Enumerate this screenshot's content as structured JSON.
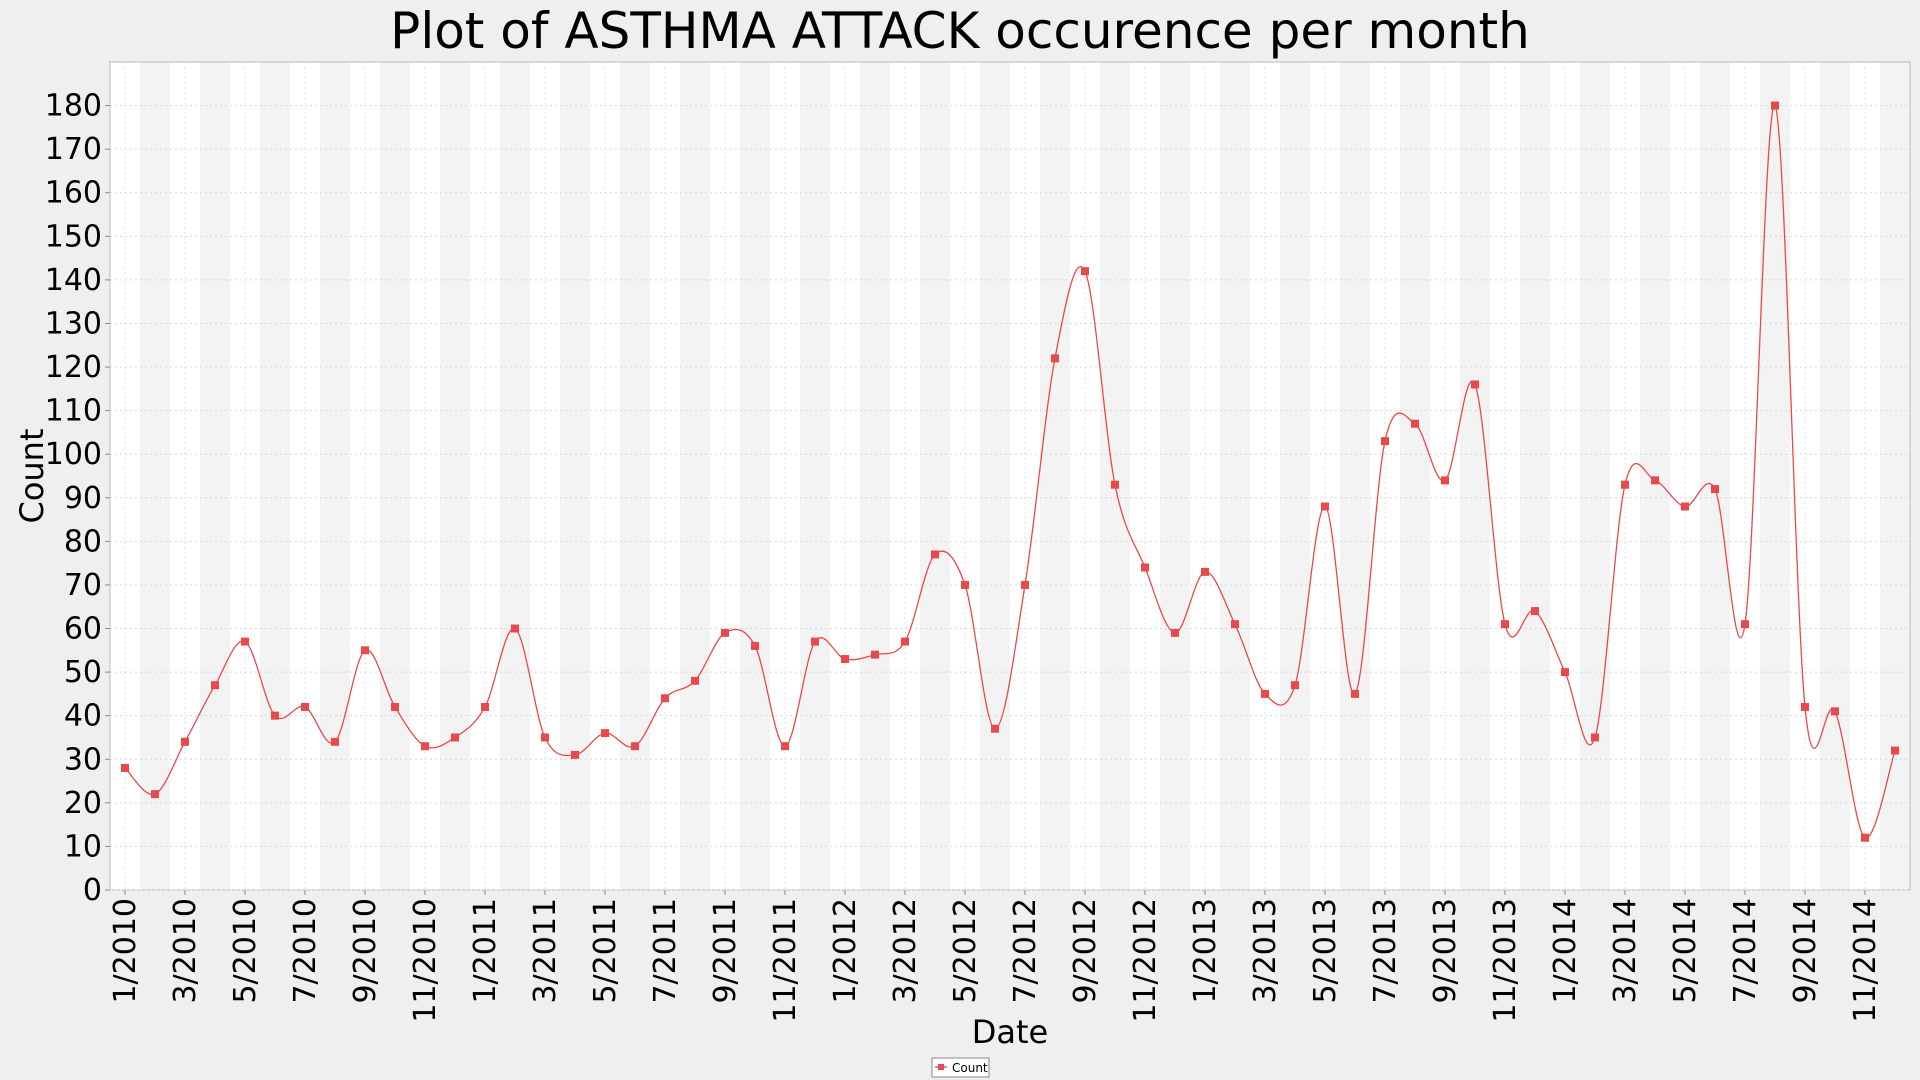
{
  "chart_data": {
    "type": "line",
    "title": "Plot of ASTHMA ATTACK occurence per month",
    "xlabel": "Date",
    "ylabel": "Count",
    "ylim": [
      0,
      190
    ],
    "yticks": [
      0,
      10,
      20,
      30,
      40,
      50,
      60,
      70,
      80,
      90,
      100,
      110,
      120,
      130,
      140,
      150,
      160,
      170,
      180
    ],
    "xtick_labels": [
      "1/2010",
      "3/2010",
      "5/2010",
      "7/2010",
      "9/2010",
      "11/2010",
      "1/2011",
      "3/2011",
      "5/2011",
      "7/2011",
      "9/2011",
      "11/2011",
      "1/2012",
      "3/2012",
      "5/2012",
      "7/2012",
      "9/2012",
      "11/2012",
      "1/2013",
      "3/2013",
      "5/2013",
      "7/2013",
      "9/2013",
      "11/2013",
      "1/2014",
      "3/2014",
      "5/2014",
      "7/2014",
      "9/2014",
      "11/2014"
    ],
    "grid": true,
    "legend": {
      "position": "bottom-center"
    },
    "series": [
      {
        "name": "Count",
        "color": "#e8494a",
        "x": [
          "1/2010",
          "2/2010",
          "3/2010",
          "4/2010",
          "5/2010",
          "6/2010",
          "7/2010",
          "8/2010",
          "9/2010",
          "10/2010",
          "11/2010",
          "12/2010",
          "1/2011",
          "2/2011",
          "3/2011",
          "4/2011",
          "5/2011",
          "6/2011",
          "7/2011",
          "8/2011",
          "9/2011",
          "10/2011",
          "11/2011",
          "12/2011",
          "1/2012",
          "2/2012",
          "3/2012",
          "4/2012",
          "5/2012",
          "6/2012",
          "7/2012",
          "8/2012",
          "9/2012",
          "10/2012",
          "11/2012",
          "12/2012",
          "1/2013",
          "2/2013",
          "3/2013",
          "4/2013",
          "5/2013",
          "6/2013",
          "7/2013",
          "8/2013",
          "9/2013",
          "10/2013",
          "11/2013",
          "12/2013",
          "1/2014",
          "2/2014",
          "3/2014",
          "4/2014",
          "5/2014",
          "6/2014",
          "7/2014",
          "8/2014",
          "9/2014",
          "10/2014",
          "11/2014",
          "12/2014"
        ],
        "values": [
          28,
          22,
          34,
          47,
          57,
          40,
          42,
          34,
          55,
          42,
          33,
          35,
          42,
          60,
          35,
          31,
          36,
          33,
          44,
          48,
          59,
          56,
          33,
          57,
          53,
          54,
          57,
          77,
          70,
          37,
          70,
          122,
          142,
          93,
          74,
          59,
          73,
          61,
          45,
          47,
          88,
          45,
          103,
          107,
          94,
          116,
          61,
          64,
          50,
          35,
          93,
          94,
          88,
          92,
          61,
          180,
          42,
          41,
          12,
          32
        ]
      }
    ]
  }
}
